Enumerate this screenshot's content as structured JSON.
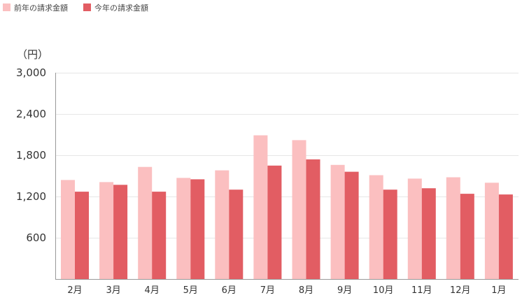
{
  "chart_data": {
    "type": "bar",
    "unit_label": "（円）",
    "categories": [
      "2月",
      "3月",
      "4月",
      "5月",
      "6月",
      "7月",
      "8月",
      "9月",
      "10月",
      "11月",
      "12月",
      "1月"
    ],
    "series": [
      {
        "name": "前年の請求金額",
        "color": "#fbbfc0",
        "values": [
          1440,
          1410,
          1630,
          1470,
          1580,
          2090,
          2020,
          1660,
          1510,
          1460,
          1480,
          1400
        ]
      },
      {
        "name": "今年の請求金額",
        "color": "#e25d63",
        "values": [
          1270,
          1370,
          1270,
          1450,
          1300,
          1650,
          1740,
          1560,
          1300,
          1320,
          1240,
          1230
        ]
      }
    ],
    "y_ticks": [
      "3,000",
      "2,400",
      "1,800",
      "1,200",
      "600"
    ],
    "ylim": [
      0,
      3000
    ],
    "grid": true,
    "legend_position": "top-left"
  }
}
